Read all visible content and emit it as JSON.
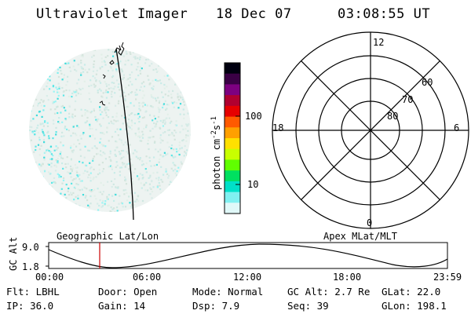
{
  "header": {
    "instrument": "Ultraviolet Imager",
    "date": "18 Dec 07",
    "time": "03:08:55 UT"
  },
  "colorbar": {
    "unit_prefix": "photon cm",
    "unit_exp1": "-2",
    "unit_mid": "s",
    "unit_exp2": "-1",
    "tick_100": "100",
    "tick_10": "10",
    "colors": [
      "#000010",
      "#3a0045",
      "#7d0080",
      "#b00030",
      "#e60000",
      "#ff5a00",
      "#ffa000",
      "#ffe000",
      "#c8ff00",
      "#60ff00",
      "#00e060",
      "#00e0c8",
      "#80f0f0",
      "#e0f8f8"
    ]
  },
  "polar": {
    "lbl_12": "12",
    "lbl_18": "18",
    "lbl_6": "6",
    "lbl_0": "0",
    "lbl_60": "60",
    "lbl_70": "70",
    "lbl_80": "80"
  },
  "labels": {
    "geographic": "Geographic Lat/Lon",
    "apex": "Apex MLat/MLT"
  },
  "altitude": {
    "axis_label": "GC Alt",
    "ymax": "9.0",
    "ymin": "1.8",
    "xticks": [
      "00:00",
      "06:00",
      "12:00",
      "18:00",
      "23:59"
    ],
    "line_color": "#cc0000"
  },
  "info": {
    "flt": "Flt: LBHL",
    "door": "Door: Open",
    "mode": "Mode: Normal",
    "gcalt": "GC Alt: 2.7 Re",
    "glat": "GLat: 22.0",
    "ip": "IP: 36.0",
    "gain": "Gain: 14",
    "dsp": "Dsp:    7.9",
    "seq": "Seq: 39",
    "glon": "GLon: 198.1"
  }
}
